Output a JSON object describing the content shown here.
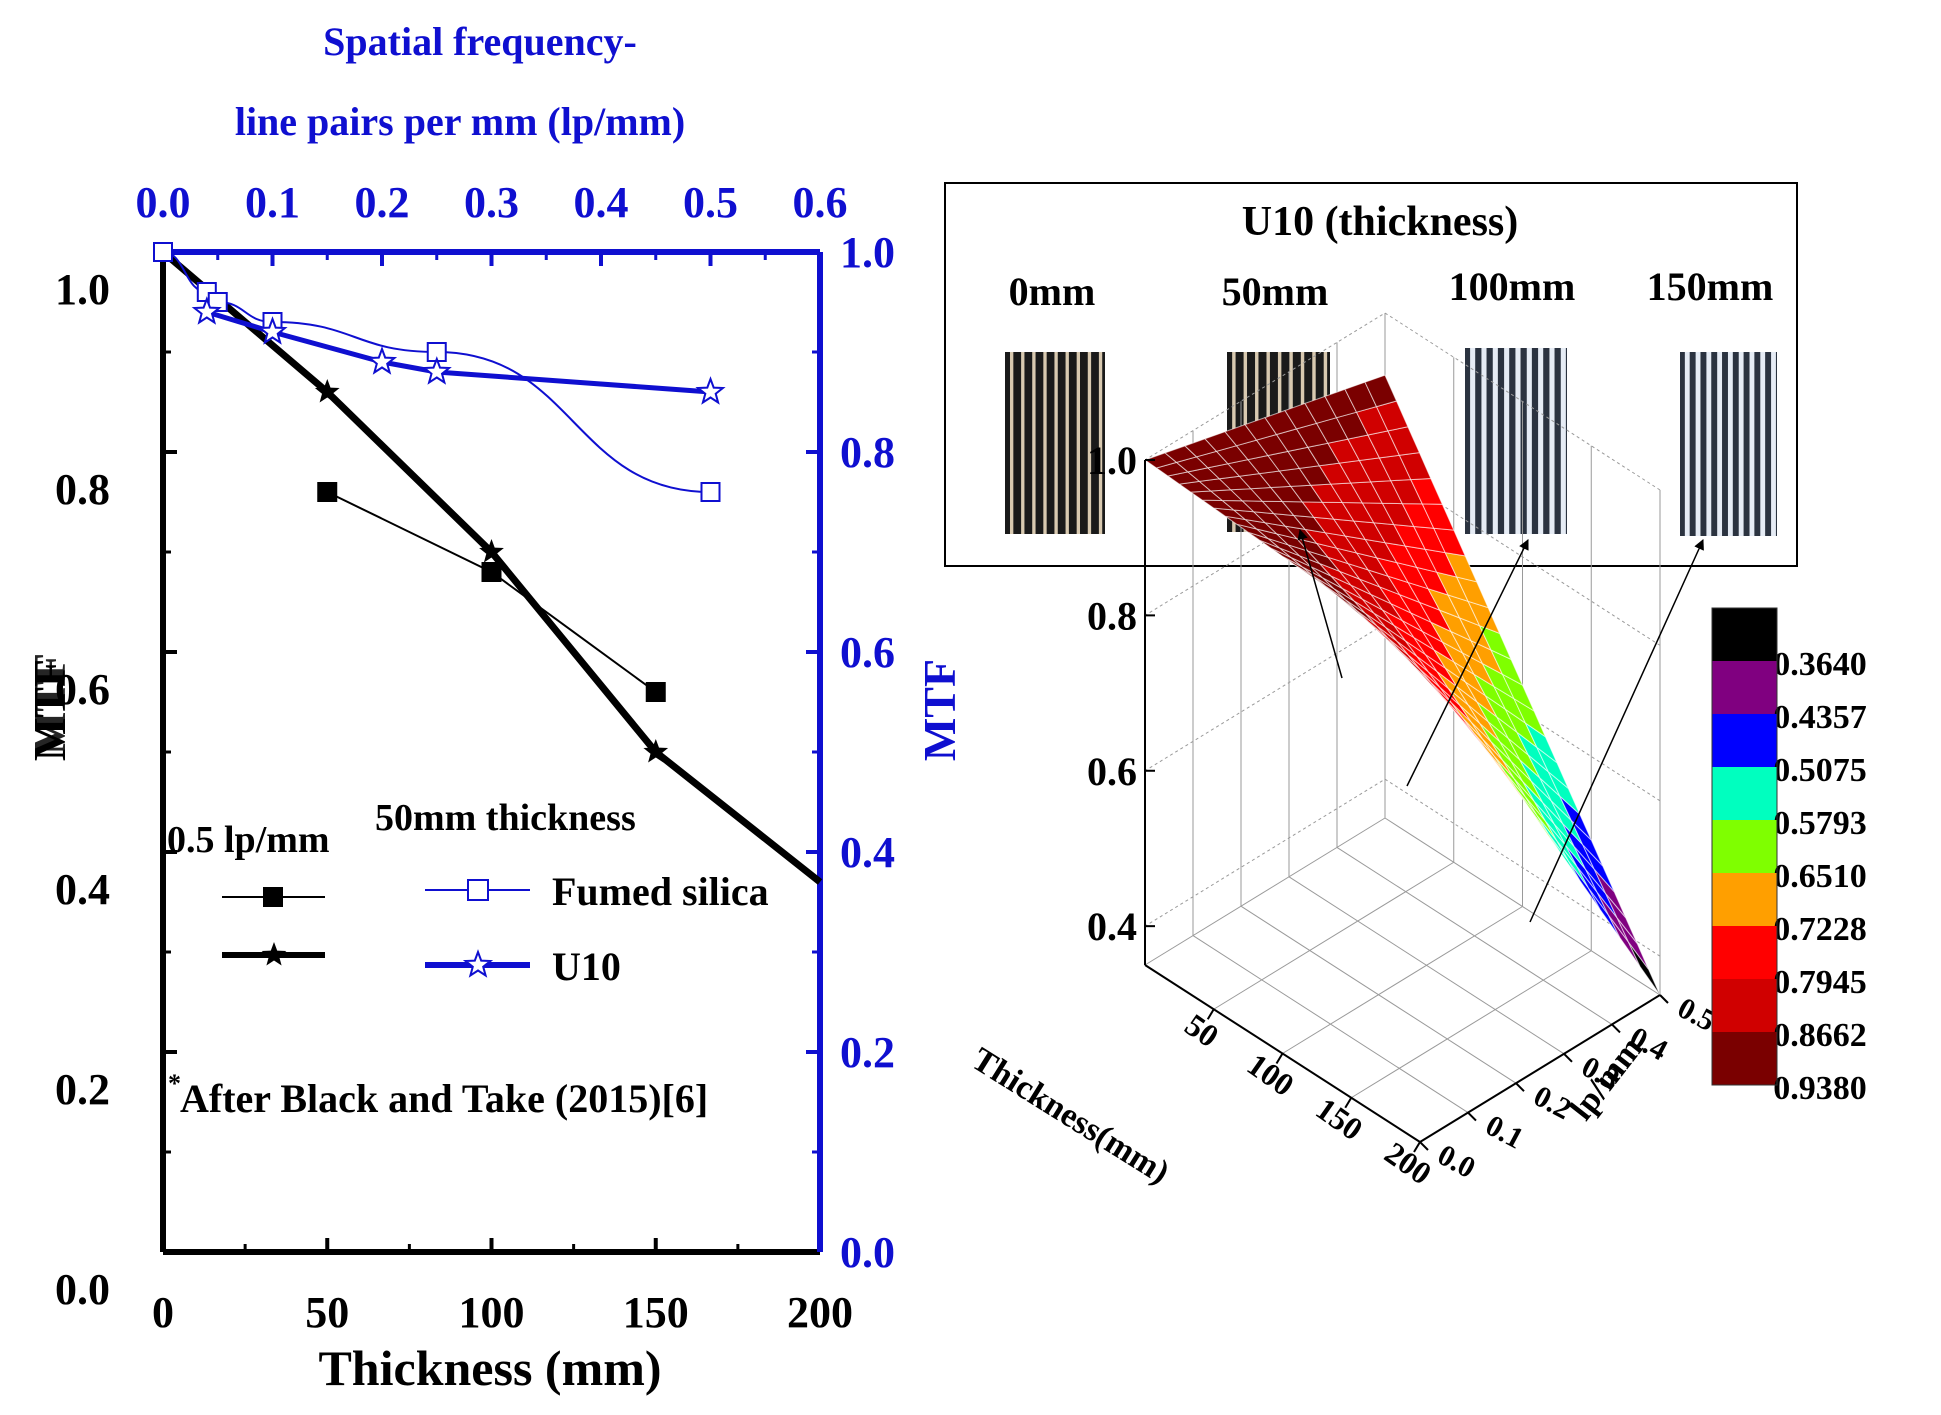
{
  "chart_data": [
    {
      "type": "line",
      "title": "",
      "xlabel": "Thickness (mm)",
      "ylabel": "MTF",
      "xlim": [
        0,
        200
      ],
      "ylim": [
        0,
        1.0
      ],
      "x_ticks": [
        "0",
        "50",
        "100",
        "150",
        "200"
      ],
      "y_ticks": [
        "0.0",
        "0.2",
        "0.4",
        "0.6",
        "0.8",
        "1.0"
      ],
      "ylabel_overlap_text": "MTF",
      "series": [
        {
          "name": "0.5 lp/mm (after Black and Take)",
          "marker": "filled-square",
          "x": [
            50,
            100,
            150
          ],
          "y": [
            0.76,
            0.68,
            0.56
          ]
        },
        {
          "name": "0.5 lp/mm (U10)",
          "marker": "filled-star",
          "x": [
            0,
            50,
            100,
            150,
            200
          ],
          "y": [
            1.0,
            0.86,
            0.7,
            0.5,
            0.37
          ]
        }
      ],
      "secondary_axes": {
        "top_label_line1": "Spatial frequency-",
        "top_label_line2": "line pairs per mm (lp/mm)",
        "top_xlim": [
          0,
          0.6
        ],
        "top_ticks": [
          "0.0",
          "0.1",
          "0.2",
          "0.3",
          "0.4",
          "0.5",
          "0.6"
        ],
        "right_label": "MTF",
        "right_ylim": [
          0,
          1.0
        ],
        "right_ticks": [
          "0.0",
          "0.2",
          "0.4",
          "0.6",
          "0.8",
          "1.0"
        ],
        "series": [
          {
            "name": "Fumed silica",
            "marker": "open-square",
            "x": [
              0.0,
              0.04,
              0.05,
              0.1,
              0.25,
              0.5
            ],
            "y": [
              1.0,
              0.96,
              0.95,
              0.93,
              0.9,
              0.76
            ]
          },
          {
            "name": "U10",
            "marker": "open-star",
            "x": [
              0.04,
              0.1,
              0.2,
              0.25,
              0.5
            ],
            "y": [
              0.94,
              0.92,
              0.89,
              0.88,
              0.86
            ]
          }
        ]
      },
      "legend": {
        "left_title": "0.5 lp/mm",
        "right_title": "50mm thickness",
        "fumed_label": "Fumed silica",
        "u10_label": "U10"
      },
      "annotation": {
        "star": "*",
        "text": "After Black and Take (2015)[6]"
      }
    },
    {
      "type": "surface",
      "title": "U10 (thickness)",
      "xlabel": "Thickness(mm)",
      "ylabel": "lp/mm",
      "zlabel": "",
      "x_ticks": [
        "50",
        "100",
        "150",
        "200"
      ],
      "y_ticks": [
        "0.0",
        "0.1",
        "0.2",
        "0.3",
        "0.4",
        "0.5"
      ],
      "z_ticks": [
        "0.4",
        "0.6",
        "0.8",
        "1.0"
      ],
      "colorbar": [
        {
          "value": "0.3640",
          "color": "#000000"
        },
        {
          "value": "0.4357",
          "color": "#800080"
        },
        {
          "value": "0.5075",
          "color": "#0000ff"
        },
        {
          "value": "0.5793",
          "color": "#00ffbf"
        },
        {
          "value": "0.6510",
          "color": "#7fff00"
        },
        {
          "value": "0.7228",
          "color": "#ff9f00"
        },
        {
          "value": "0.7945",
          "color": "#ff0000"
        },
        {
          "value": "0.8662",
          "color": "#d00000"
        },
        {
          "value": "0.9380",
          "color": "#7a0000"
        }
      ],
      "thickness_images": [
        {
          "label": "0mm",
          "style": "dark"
        },
        {
          "label": "50mm",
          "style": "dark"
        },
        {
          "label": "100mm",
          "style": "light"
        },
        {
          "label": "150mm",
          "style": "light"
        }
      ]
    }
  ],
  "colors": {
    "axis_left": "#000000",
    "axis_blue": "#0f0fd0"
  }
}
